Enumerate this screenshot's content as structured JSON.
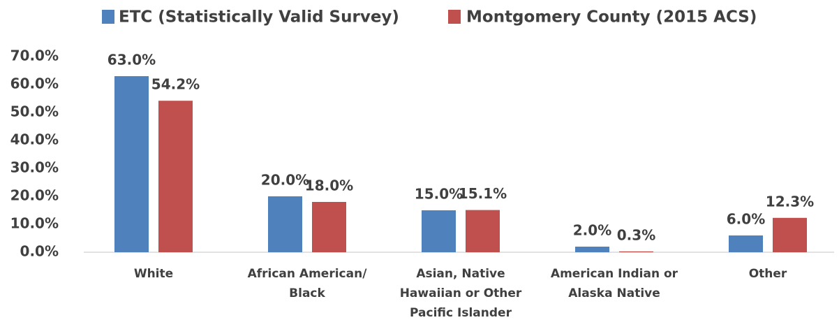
{
  "chart_data": {
    "type": "bar",
    "categories": [
      "White",
      "African American/ Black",
      "Asian, Native Hawaiian or Other Pacific Islander",
      "American Indian or Alaska Native",
      "Other"
    ],
    "series": [
      {
        "name": "ETC (Statistically Valid Survey)",
        "color": "#4f81bd",
        "values": [
          63.0,
          20.0,
          15.0,
          2.0,
          6.0
        ],
        "value_labels": [
          "63.0%",
          "20.0%",
          "15.0%",
          "2.0%",
          "6.0%"
        ]
      },
      {
        "name": "Montgomery County (2015 ACS)",
        "color": "#c0504d",
        "values": [
          54.2,
          18.0,
          15.1,
          0.3,
          12.3
        ],
        "value_labels": [
          "54.2%",
          "18.0%",
          "15.1%",
          "0.3%",
          "12.3%"
        ]
      }
    ],
    "ylim": [
      0,
      70
    ],
    "yticks": [
      {
        "value": 0,
        "label": "0.0%"
      },
      {
        "value": 10,
        "label": "10.0%"
      },
      {
        "value": 20,
        "label": "20.0%"
      },
      {
        "value": 30,
        "label": "30.0%"
      },
      {
        "value": 40,
        "label": "40.0%"
      },
      {
        "value": 50,
        "label": "50.0%"
      },
      {
        "value": 60,
        "label": "60.0%"
      },
      {
        "value": 70,
        "label": "70.0%"
      }
    ],
    "grid": false,
    "legend": "top"
  }
}
